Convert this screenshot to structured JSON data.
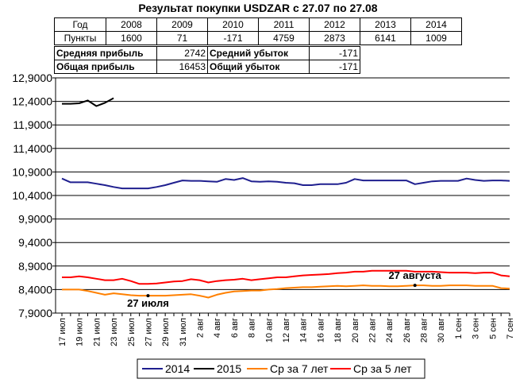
{
  "chart_data": {
    "type": "line",
    "title": "Результат покупки USDZAR с 27.07 по 27.08",
    "ylim": [
      7.9,
      12.9
    ],
    "yticks": [
      "12,9000",
      "12,4000",
      "11,9000",
      "11,4000",
      "10,9000",
      "10,4000",
      "9,9000",
      "9,4000",
      "8,9000",
      "8,4000",
      "7,9000"
    ],
    "ytick_values": [
      12.9,
      12.4,
      11.9,
      11.4,
      10.9,
      10.4,
      9.9,
      9.4,
      8.9,
      8.4,
      7.9
    ],
    "grid": "horizontal",
    "legend_position": "bottom",
    "x": [
      "17 июл",
      "18 июл",
      "19 июл",
      "20 июл",
      "21 июл",
      "22 июл",
      "23 июл",
      "24 июл",
      "25 июл",
      "26 июл",
      "27 июл",
      "28 июл",
      "29 июл",
      "30 июл",
      "31 июл",
      "1 авг",
      "2 авг",
      "3 авг",
      "4 авг",
      "5 авг",
      "6 авг",
      "7 авг",
      "8 авг",
      "9 авг",
      "10 авг",
      "11 авг",
      "12 авг",
      "13 авг",
      "14 авг",
      "15 авг",
      "16 авг",
      "17 авг",
      "18 авг",
      "19 авг",
      "20 авг",
      "21 авг",
      "22 авг",
      "23 авг",
      "24 авг",
      "25 авг",
      "26 авг",
      "27 авг",
      "28 авг",
      "29 авг",
      "30 авг",
      "31 авг",
      "1 сен",
      "2 сен",
      "3 сен",
      "4 сен",
      "5 сен",
      "6 сен",
      "7 сен"
    ],
    "xtick_labels": [
      "17 июл",
      "19 июл",
      "21 июл",
      "23 июл",
      "25 июл",
      "27 июл",
      "29 июл",
      "31 июл",
      "2 авг",
      "4 авг",
      "6 авг",
      "8 авг",
      "10 авг",
      "12 авг",
      "14 авг",
      "16 авг",
      "18 авг",
      "20 авг",
      "22 авг",
      "24 авг",
      "26 авг",
      "28 авг",
      "30 авг",
      "1 сен",
      "3 сен",
      "5 сен",
      "7 сен"
    ],
    "series": [
      {
        "name": "2014",
        "color": "#1f1f8f",
        "values": [
          10.76,
          10.68,
          10.68,
          10.68,
          10.65,
          10.62,
          10.58,
          10.55,
          10.55,
          10.55,
          10.55,
          10.58,
          10.62,
          10.67,
          10.72,
          10.71,
          10.71,
          10.7,
          10.69,
          10.75,
          10.73,
          10.77,
          10.7,
          10.69,
          10.7,
          10.69,
          10.67,
          10.66,
          10.62,
          10.62,
          10.64,
          10.64,
          10.64,
          10.67,
          10.75,
          10.72,
          10.72,
          10.72,
          10.72,
          10.72,
          10.72,
          10.64,
          10.67,
          10.7,
          10.71,
          10.71,
          10.71,
          10.76,
          10.73,
          10.71,
          10.72,
          10.72,
          10.71
        ]
      },
      {
        "name": "2015",
        "color": "#000000",
        "values": [
          12.35,
          12.35,
          12.36,
          12.42,
          12.3,
          12.37,
          12.47,
          null,
          null,
          null,
          null,
          null,
          null,
          null,
          null,
          null,
          null,
          null,
          null,
          null,
          null,
          null,
          null,
          null,
          null,
          null,
          null,
          null,
          null,
          null,
          null,
          null,
          null,
          null,
          null,
          null,
          null,
          null,
          null,
          null,
          null,
          null,
          null,
          null,
          null,
          null,
          null,
          null,
          null,
          null,
          null,
          null,
          null
        ]
      },
      {
        "name": "Ср за 7 лет",
        "color": "#ff8000",
        "values": [
          8.4,
          8.4,
          8.4,
          8.37,
          8.33,
          8.29,
          8.32,
          8.3,
          8.28,
          8.27,
          8.27,
          8.27,
          8.27,
          8.28,
          8.29,
          8.3,
          8.27,
          8.23,
          8.29,
          8.33,
          8.36,
          8.37,
          8.38,
          8.38,
          8.4,
          8.41,
          8.43,
          8.44,
          8.45,
          8.45,
          8.46,
          8.47,
          8.48,
          8.47,
          8.48,
          8.49,
          8.48,
          8.48,
          8.47,
          8.47,
          8.48,
          8.49,
          8.49,
          8.48,
          8.48,
          8.49,
          8.49,
          8.49,
          8.48,
          8.48,
          8.48,
          8.43,
          8.42
        ]
      },
      {
        "name": "Ср за 5 лет",
        "color": "#ff0000",
        "values": [
          8.66,
          8.66,
          8.68,
          8.66,
          8.63,
          8.6,
          8.6,
          8.63,
          8.58,
          8.52,
          8.52,
          8.53,
          8.55,
          8.57,
          8.58,
          8.62,
          8.6,
          8.55,
          8.58,
          8.6,
          8.61,
          8.63,
          8.6,
          8.62,
          8.64,
          8.66,
          8.66,
          8.68,
          8.7,
          8.71,
          8.72,
          8.73,
          8.75,
          8.76,
          8.78,
          8.78,
          8.8,
          8.8,
          8.8,
          8.8,
          8.8,
          8.78,
          8.78,
          8.78,
          8.77,
          8.76,
          8.76,
          8.76,
          8.75,
          8.76,
          8.76,
          8.7,
          8.68
        ]
      }
    ],
    "annotations": [
      {
        "text": "27 июля",
        "x": "27 июл",
        "series": "Ср за 7 лет"
      },
      {
        "text": "27 августа",
        "x": "27 авг",
        "series": "Ср за 7 лет"
      }
    ]
  },
  "stats_table": {
    "row_years_label": "Год",
    "row_points_label": "Пункты",
    "years": [
      "2008",
      "2009",
      "2010",
      "2011",
      "2012",
      "2013",
      "2014"
    ],
    "points": [
      "1600",
      "71",
      "-171",
      "4759",
      "2873",
      "6141",
      "1009"
    ]
  },
  "summary": {
    "avg_profit_label": "Средняя прибыль",
    "avg_profit_value": "2742",
    "avg_loss_label": "Средний убыток",
    "avg_loss_value": "-171",
    "total_profit_label": "Общая прибыль",
    "total_profit_value": "16453",
    "total_loss_label": "Общий убыток",
    "total_loss_value": "-171"
  }
}
